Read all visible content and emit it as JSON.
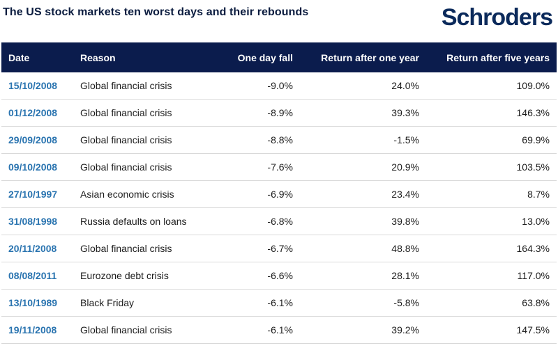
{
  "title": "The US stock markets ten worst days and their rebounds",
  "logo_text": "Schroders",
  "colors": {
    "header_bg": "#0b1c4d",
    "date_text": "#2a74b0",
    "logo": "#0b2a5b"
  },
  "chart_data": {
    "type": "table",
    "columns": [
      "Date",
      "Reason",
      "One day fall",
      "Return after one year",
      "Return after five years"
    ],
    "rows": [
      [
        "15/10/2008",
        "Global financial crisis",
        "-9.0%",
        "24.0%",
        "109.0%"
      ],
      [
        "01/12/2008",
        "Global financial crisis",
        "-8.9%",
        "39.3%",
        "146.3%"
      ],
      [
        "29/09/2008",
        "Global financial crisis",
        "-8.8%",
        "-1.5%",
        "69.9%"
      ],
      [
        "09/10/2008",
        "Global financial crisis",
        "-7.6%",
        "20.9%",
        "103.5%"
      ],
      [
        "27/10/1997",
        "Asian economic crisis",
        "-6.9%",
        "23.4%",
        "8.7%"
      ],
      [
        "31/08/1998",
        "Russia defaults on loans",
        "-6.8%",
        "39.8%",
        "13.0%"
      ],
      [
        "20/11/2008",
        "Global financial crisis",
        "-6.7%",
        "48.8%",
        "164.3%"
      ],
      [
        "08/08/2011",
        "Eurozone debt crisis",
        "-6.6%",
        "28.1%",
        "117.0%"
      ],
      [
        "13/10/1989",
        "Black Friday",
        "-6.1%",
        "-5.8%",
        "63.8%"
      ],
      [
        "19/11/2008",
        "Global financial crisis",
        "-6.1%",
        "39.2%",
        "147.5%"
      ]
    ]
  }
}
